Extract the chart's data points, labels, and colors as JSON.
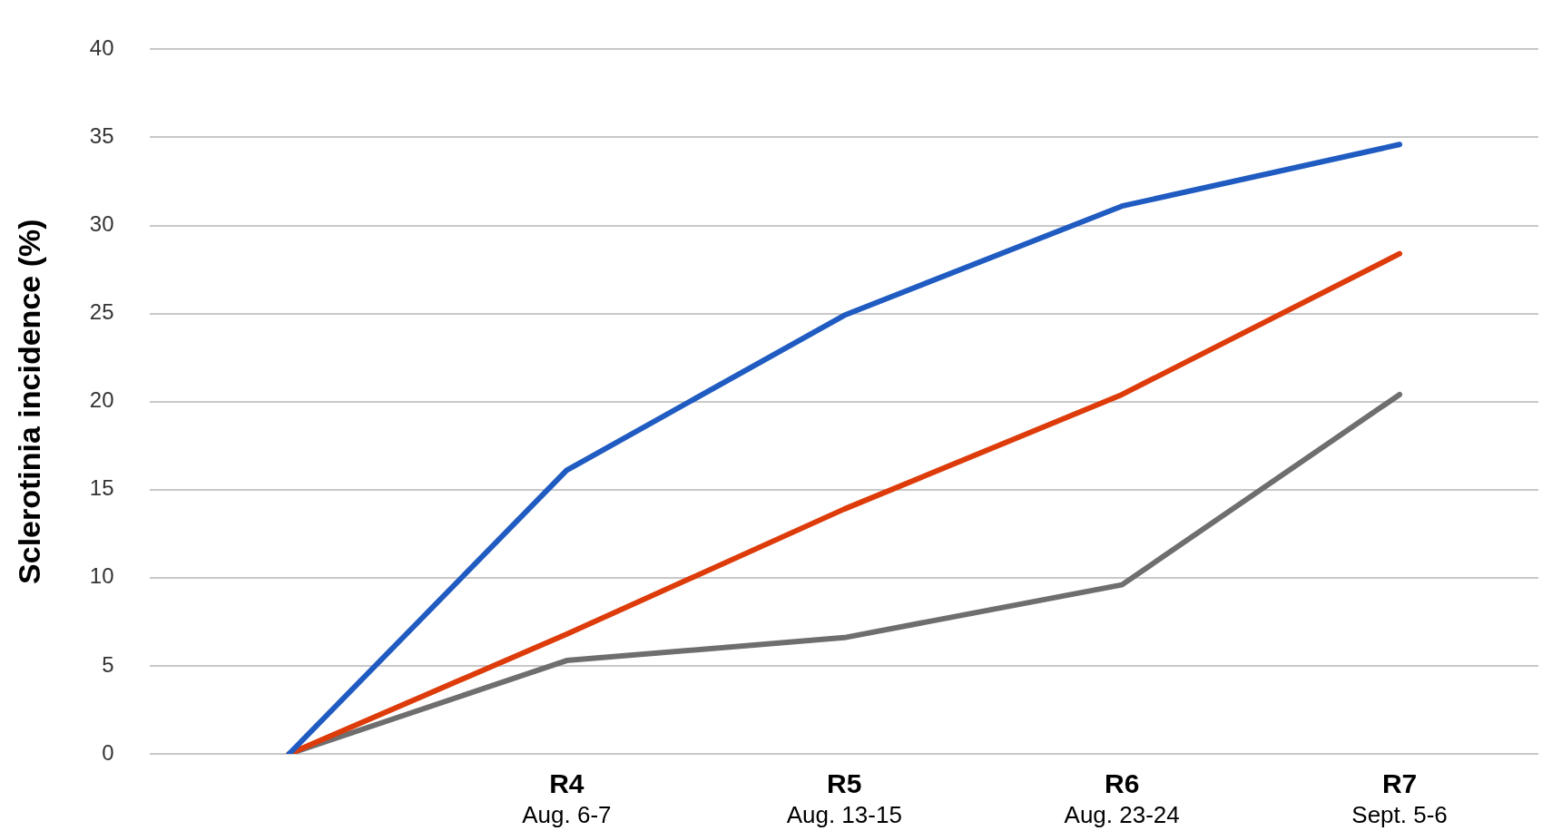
{
  "chart_data": {
    "type": "line",
    "ylabel": "Sclerotinia incidence (%)",
    "categories": [
      null,
      "R4\nAug. 6-7",
      "R5\nAug. 13-15",
      "R6\nAug. 23-24",
      "R7\nSept. 5-6"
    ],
    "series": [
      {
        "color": "#1f5bc1",
        "values": [
          0,
          16.1,
          24.9,
          31.1,
          34.6
        ]
      },
      {
        "color": "#dd3c0a",
        "values": [
          0,
          6.8,
          13.9,
          20.4,
          28.4
        ]
      },
      {
        "color": "#6e6e6e",
        "values": [
          0,
          5.3,
          6.6,
          9.6,
          20.4
        ]
      }
    ],
    "ylim": [
      0,
      40
    ],
    "yticks": [
      0,
      5,
      10,
      15,
      20,
      25,
      30,
      35,
      40
    ],
    "grid": "y",
    "legend": false,
    "marker": "none",
    "line_style": "solid"
  }
}
